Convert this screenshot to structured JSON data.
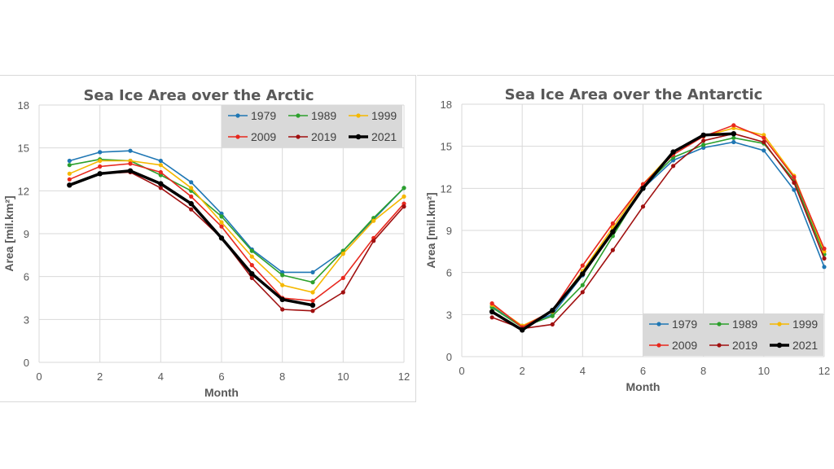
{
  "chart_data": [
    {
      "type": "line",
      "title": "Sea Ice Area over the Arctic",
      "xlabel": "Month",
      "ylabel": "Area [mil.km²]",
      "xlim": [
        0,
        12
      ],
      "ylim": [
        0,
        18
      ],
      "xticks": [
        "0",
        "2",
        "4",
        "6",
        "8",
        "10",
        "12"
      ],
      "yticks": [
        "0",
        "3",
        "6",
        "9",
        "12",
        "15",
        "18"
      ],
      "grid": true,
      "legend_position": "top-right",
      "x": [
        1,
        2,
        3,
        4,
        5,
        6,
        7,
        8,
        9,
        10,
        11,
        12
      ],
      "series": [
        {
          "name": "1979",
          "color": "#1f77b4",
          "values": [
            14.1,
            14.7,
            14.8,
            14.1,
            12.6,
            10.4,
            7.9,
            6.3,
            6.3,
            7.8,
            10.0,
            12.2
          ]
        },
        {
          "name": "1989",
          "color": "#2ca02c",
          "values": [
            13.8,
            14.2,
            14.1,
            13.1,
            12.0,
            10.2,
            7.8,
            6.1,
            5.6,
            7.8,
            10.1,
            12.2
          ]
        },
        {
          "name": "1999",
          "color": "#f5b800",
          "values": [
            13.2,
            14.1,
            14.1,
            13.8,
            12.2,
            9.8,
            7.4,
            5.4,
            4.9,
            7.6,
            9.9,
            11.6
          ]
        },
        {
          "name": "2009",
          "color": "#e8281e",
          "values": [
            12.8,
            13.7,
            13.9,
            13.3,
            11.6,
            9.5,
            6.8,
            4.5,
            4.3,
            5.9,
            8.7,
            11.1
          ]
        },
        {
          "name": "2019",
          "color": "#a01010",
          "values": [
            12.4,
            13.2,
            13.3,
            12.2,
            10.7,
            8.7,
            5.9,
            3.7,
            3.6,
            4.9,
            8.5,
            10.9
          ]
        },
        {
          "name": "2021",
          "color": "#000000",
          "values": [
            12.4,
            13.2,
            13.4,
            12.5,
            11.1,
            8.7,
            6.2,
            4.4,
            4.0,
            null,
            null,
            null
          ]
        }
      ]
    },
    {
      "type": "line",
      "title": "Sea Ice Area over the Antarctic",
      "xlabel": "Month",
      "ylabel": "Area [mil.km²]",
      "xlim": [
        0,
        12
      ],
      "ylim": [
        0,
        18
      ],
      "xticks": [
        "0",
        "2",
        "4",
        "6",
        "8",
        "10",
        "12"
      ],
      "yticks": [
        "0",
        "3",
        "6",
        "9",
        "12",
        "15",
        "18"
      ],
      "grid": true,
      "legend_position": "bottom-right",
      "x": [
        1,
        2,
        3,
        4,
        5,
        6,
        7,
        8,
        9,
        10,
        11,
        12
      ],
      "series": [
        {
          "name": "1979",
          "color": "#1f77b4",
          "values": [
            3.6,
            2.2,
            3.0,
            5.8,
            8.9,
            12.0,
            14.0,
            14.9,
            15.3,
            14.7,
            11.9,
            6.4
          ]
        },
        {
          "name": "1989",
          "color": "#2ca02c",
          "values": [
            3.5,
            2.1,
            2.9,
            5.1,
            8.6,
            12.1,
            14.2,
            15.1,
            15.6,
            15.2,
            12.6,
            7.3
          ]
        },
        {
          "name": "1999",
          "color": "#f5b800",
          "values": [
            3.7,
            2.2,
            3.2,
            6.1,
            9.2,
            12.3,
            14.6,
            15.7,
            16.3,
            15.8,
            12.9,
            7.5
          ]
        },
        {
          "name": "2009",
          "color": "#e8281e",
          "values": [
            3.8,
            2.1,
            3.3,
            6.5,
            9.5,
            12.3,
            14.4,
            15.7,
            16.5,
            15.6,
            12.8,
            7.7
          ]
        },
        {
          "name": "2019",
          "color": "#a01010",
          "values": [
            2.8,
            2.0,
            2.3,
            4.6,
            7.6,
            10.7,
            13.6,
            15.4,
            15.9,
            15.3,
            12.4,
            7.0
          ]
        },
        {
          "name": "2021",
          "color": "#000000",
          "values": [
            3.2,
            1.9,
            3.3,
            5.9,
            8.9,
            12.0,
            14.6,
            15.8,
            15.9,
            null,
            null,
            null
          ]
        }
      ]
    }
  ]
}
